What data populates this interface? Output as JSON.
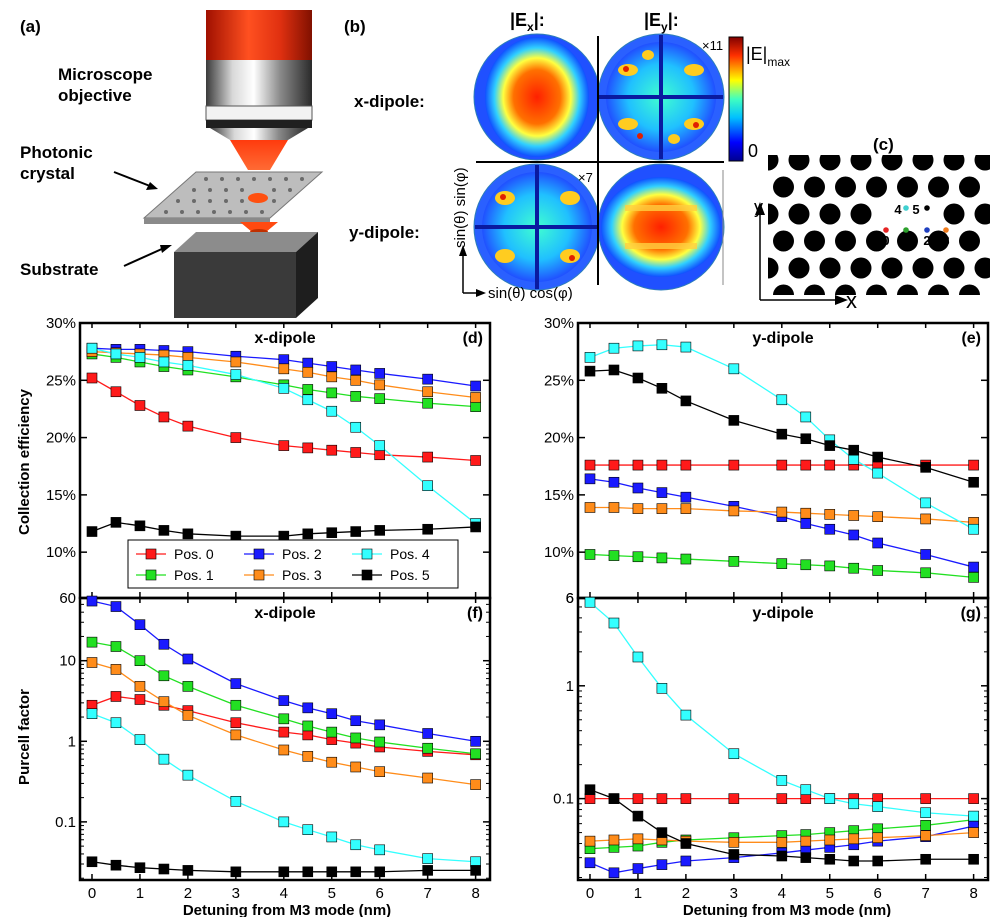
{
  "labels": {
    "a": "(a)",
    "b": "(b)",
    "c": "(c)",
    "d": "(d)",
    "e": "(e)",
    "f": "(f)",
    "g": "(g)"
  },
  "panel_a": {
    "objective": "Microscope\nobjective",
    "crystal": "Photonic\ncrystal",
    "substrate": "Substrate"
  },
  "panel_b": {
    "ex": "|E",
    "ex_sub": "x",
    "ey_sub": "y",
    "colon": "|:",
    "row_x": "x-dipole:",
    "row_y": "y-dipole:",
    "scale_11": "×11",
    "scale_7": "×7",
    "cbar_max": "|E|",
    "cbar_max_sub": "max",
    "cbar_zero": "0",
    "axis_x": "sin(θ) cos(φ)",
    "axis_y": "sin(θ) sin(φ)"
  },
  "panel_c": {
    "pos": [
      "0",
      "1",
      "2",
      "3",
      "4",
      "5"
    ],
    "pos_colors": [
      "#e52323",
      "#2ca02c",
      "#1f3fbf",
      "#f07c1e",
      "#3fd0d0",
      "#000000"
    ],
    "ax_x": "x",
    "ax_y": "y"
  },
  "colors": {
    "Pos. 0": "#ff1a1a",
    "Pos. 1": "#22e022",
    "Pos. 2": "#1a1aff",
    "Pos. 3": "#ff8c1a",
    "Pos. 4": "#33ffff",
    "Pos. 5": "#000000"
  },
  "shared": {
    "xlabel": "Detuning from M3 mode (nm)",
    "ylabel_top": "Collection efficiency",
    "ylabel_bottom": "Purcell factor",
    "legend": [
      "Pos. 0",
      "Pos. 2",
      "Pos. 4",
      "Pos. 1",
      "Pos. 3",
      "Pos. 5"
    ]
  },
  "chart_data": [
    {
      "id": "d",
      "type": "line",
      "title": "x-dipole",
      "ylabel": "Collection efficiency",
      "xlabel": "Detuning from M3 mode (nm)",
      "xlim": [
        -0.25,
        8.3
      ],
      "ylim": [
        6,
        30
      ],
      "yscale": "linear",
      "xticks": [
        0,
        1,
        2,
        3,
        4,
        5,
        6,
        7,
        8
      ],
      "yticks": [
        10,
        15,
        20,
        25,
        30
      ],
      "ytick_labels": [
        "10%",
        "15%",
        "20%",
        "25%",
        "30%"
      ],
      "bottom_label": "",
      "x": [
        0,
        0.5,
        1,
        1.5,
        2,
        3,
        4,
        4.5,
        5,
        5.5,
        6,
        7,
        8
      ],
      "series": [
        {
          "name": "Pos. 0",
          "values": [
            25.2,
            24.0,
            22.8,
            21.8,
            21.0,
            20.0,
            19.3,
            19.1,
            18.9,
            18.7,
            18.5,
            18.3,
            18.0
          ]
        },
        {
          "name": "Pos. 1",
          "values": [
            27.3,
            27.0,
            26.6,
            26.2,
            25.9,
            25.3,
            24.6,
            24.2,
            23.9,
            23.6,
            23.4,
            23.0,
            22.7
          ]
        },
        {
          "name": "Pos. 2",
          "values": [
            27.8,
            27.7,
            27.7,
            27.6,
            27.5,
            27.1,
            26.8,
            26.5,
            26.2,
            25.9,
            25.6,
            25.1,
            24.5
          ]
        },
        {
          "name": "Pos. 3",
          "values": [
            27.5,
            27.4,
            27.3,
            27.2,
            27.0,
            26.6,
            26.0,
            25.7,
            25.3,
            25.0,
            24.6,
            24.0,
            23.5
          ]
        },
        {
          "name": "Pos. 4",
          "values": [
            27.8,
            27.3,
            27.0,
            26.6,
            26.3,
            25.5,
            24.3,
            23.3,
            22.3,
            20.9,
            19.3,
            15.8,
            12.5
          ]
        },
        {
          "name": "Pos. 5",
          "values": [
            11.8,
            12.6,
            12.3,
            11.9,
            11.6,
            11.4,
            11.4,
            11.6,
            11.7,
            11.8,
            11.9,
            12.0,
            12.2
          ]
        }
      ]
    },
    {
      "id": "e",
      "type": "line",
      "title": "y-dipole",
      "ylabel": "",
      "xlabel": "Detuning from M3 mode (nm)",
      "xlim": [
        -0.25,
        8.3
      ],
      "ylim": [
        6,
        30
      ],
      "yscale": "linear",
      "xticks": [
        0,
        1,
        2,
        3,
        4,
        5,
        6,
        7,
        8
      ],
      "yticks": [
        10,
        15,
        20,
        25,
        30
      ],
      "ytick_labels": [
        "10%",
        "15%",
        "20%",
        "25%",
        "30%"
      ],
      "bottom_label": "6",
      "x": [
        0,
        0.5,
        1,
        1.5,
        2,
        3,
        4,
        4.5,
        5,
        5.5,
        6,
        7,
        8
      ],
      "series": [
        {
          "name": "Pos. 0",
          "values": [
            17.6,
            17.6,
            17.6,
            17.6,
            17.6,
            17.6,
            17.6,
            17.6,
            17.6,
            17.6,
            17.6,
            17.6,
            17.6
          ]
        },
        {
          "name": "Pos. 1",
          "values": [
            9.8,
            9.7,
            9.6,
            9.5,
            9.4,
            9.2,
            9.0,
            8.9,
            8.8,
            8.6,
            8.4,
            8.2,
            7.8
          ]
        },
        {
          "name": "Pos. 2",
          "values": [
            16.4,
            16.1,
            15.6,
            15.2,
            14.8,
            14.0,
            13.1,
            12.5,
            12.0,
            11.5,
            10.8,
            9.8,
            8.7
          ]
        },
        {
          "name": "Pos. 3",
          "values": [
            13.9,
            13.9,
            13.8,
            13.8,
            13.8,
            13.6,
            13.5,
            13.4,
            13.3,
            13.2,
            13.1,
            12.9,
            12.6
          ]
        },
        {
          "name": "Pos. 4",
          "values": [
            27.0,
            27.8,
            28.0,
            28.1,
            27.9,
            26.0,
            23.3,
            21.8,
            19.8,
            18.1,
            16.9,
            14.3,
            12.0
          ]
        },
        {
          "name": "Pos. 5",
          "values": [
            25.8,
            25.9,
            25.2,
            24.3,
            23.2,
            21.5,
            20.3,
            19.9,
            19.3,
            18.9,
            18.3,
            17.4,
            16.1
          ]
        }
      ]
    },
    {
      "id": "f",
      "type": "line",
      "title": "x-dipole",
      "ylabel": "Purcell factor",
      "xlabel": "Detuning from M3 mode (nm)",
      "xlim": [
        -0.25,
        8.3
      ],
      "ylim": [
        0.019,
        60
      ],
      "yscale": "log",
      "xticks": [
        0,
        1,
        2,
        3,
        4,
        5,
        6,
        7,
        8
      ],
      "yticks": [
        0.1,
        1,
        10,
        60
      ],
      "ytick_labels": [
        "0.1",
        "1",
        "10",
        "60"
      ],
      "bottom_label": "",
      "x": [
        0,
        0.5,
        1,
        1.5,
        2,
        3,
        4,
        4.5,
        5,
        5.5,
        6,
        7,
        8
      ],
      "series": [
        {
          "name": "Pos. 0",
          "values": [
            2.8,
            3.6,
            3.3,
            2.8,
            2.4,
            1.7,
            1.3,
            1.2,
            1.05,
            0.95,
            0.85,
            0.75,
            0.68
          ]
        },
        {
          "name": "Pos. 1",
          "values": [
            17,
            15,
            10,
            6.5,
            4.8,
            2.8,
            1.9,
            1.55,
            1.3,
            1.1,
            0.98,
            0.82,
            0.7
          ]
        },
        {
          "name": "Pos. 2",
          "values": [
            55,
            47,
            28,
            16,
            10.5,
            5.2,
            3.2,
            2.6,
            2.2,
            1.8,
            1.6,
            1.25,
            1.0
          ]
        },
        {
          "name": "Pos. 3",
          "values": [
            9.5,
            7.8,
            4.8,
            3.1,
            2.1,
            1.2,
            0.78,
            0.65,
            0.55,
            0.48,
            0.42,
            0.35,
            0.29
          ]
        },
        {
          "name": "Pos. 4",
          "values": [
            2.2,
            1.7,
            1.05,
            0.6,
            0.38,
            0.18,
            0.1,
            0.08,
            0.065,
            0.052,
            0.045,
            0.035,
            0.032
          ]
        },
        {
          "name": "Pos. 5",
          "values": [
            0.032,
            0.029,
            0.027,
            0.026,
            0.025,
            0.024,
            0.024,
            0.024,
            0.024,
            0.024,
            0.024,
            0.025,
            0.025
          ]
        }
      ]
    },
    {
      "id": "g",
      "type": "line",
      "title": "y-dipole",
      "ylabel": "",
      "xlabel": "Detuning from M3 mode (nm)",
      "xlim": [
        -0.25,
        8.3
      ],
      "ylim": [
        0.019,
        6
      ],
      "yscale": "log",
      "xticks": [
        0,
        1,
        2,
        3,
        4,
        5,
        6,
        7,
        8
      ],
      "yticks": [
        0.1,
        1,
        6
      ],
      "ytick_labels": [
        "0.1",
        "1",
        "6"
      ],
      "bottom_label": "",
      "x": [
        0,
        0.5,
        1,
        1.5,
        2,
        3,
        4,
        4.5,
        5,
        5.5,
        6,
        7,
        8
      ],
      "series": [
        {
          "name": "Pos. 0",
          "values": [
            0.1,
            0.1,
            0.1,
            0.1,
            0.1,
            0.1,
            0.1,
            0.1,
            0.1,
            0.1,
            0.1,
            0.1,
            0.1
          ]
        },
        {
          "name": "Pos. 1",
          "values": [
            0.036,
            0.037,
            0.038,
            0.041,
            0.043,
            0.045,
            0.047,
            0.048,
            0.05,
            0.052,
            0.054,
            0.058,
            0.065
          ]
        },
        {
          "name": "Pos. 2",
          "values": [
            0.027,
            0.022,
            0.024,
            0.026,
            0.028,
            0.03,
            0.033,
            0.035,
            0.037,
            0.039,
            0.042,
            0.046,
            0.057
          ]
        },
        {
          "name": "Pos. 3",
          "values": [
            0.042,
            0.043,
            0.044,
            0.043,
            0.042,
            0.041,
            0.041,
            0.042,
            0.043,
            0.044,
            0.045,
            0.047,
            0.05
          ]
        },
        {
          "name": "Pos. 4",
          "values": [
            5.5,
            3.6,
            1.8,
            0.95,
            0.55,
            0.25,
            0.145,
            0.12,
            0.1,
            0.09,
            0.085,
            0.075,
            0.07
          ]
        },
        {
          "name": "Pos. 5",
          "values": [
            0.12,
            0.1,
            0.07,
            0.05,
            0.04,
            0.032,
            0.031,
            0.03,
            0.029,
            0.028,
            0.028,
            0.029,
            0.029
          ]
        }
      ]
    }
  ]
}
